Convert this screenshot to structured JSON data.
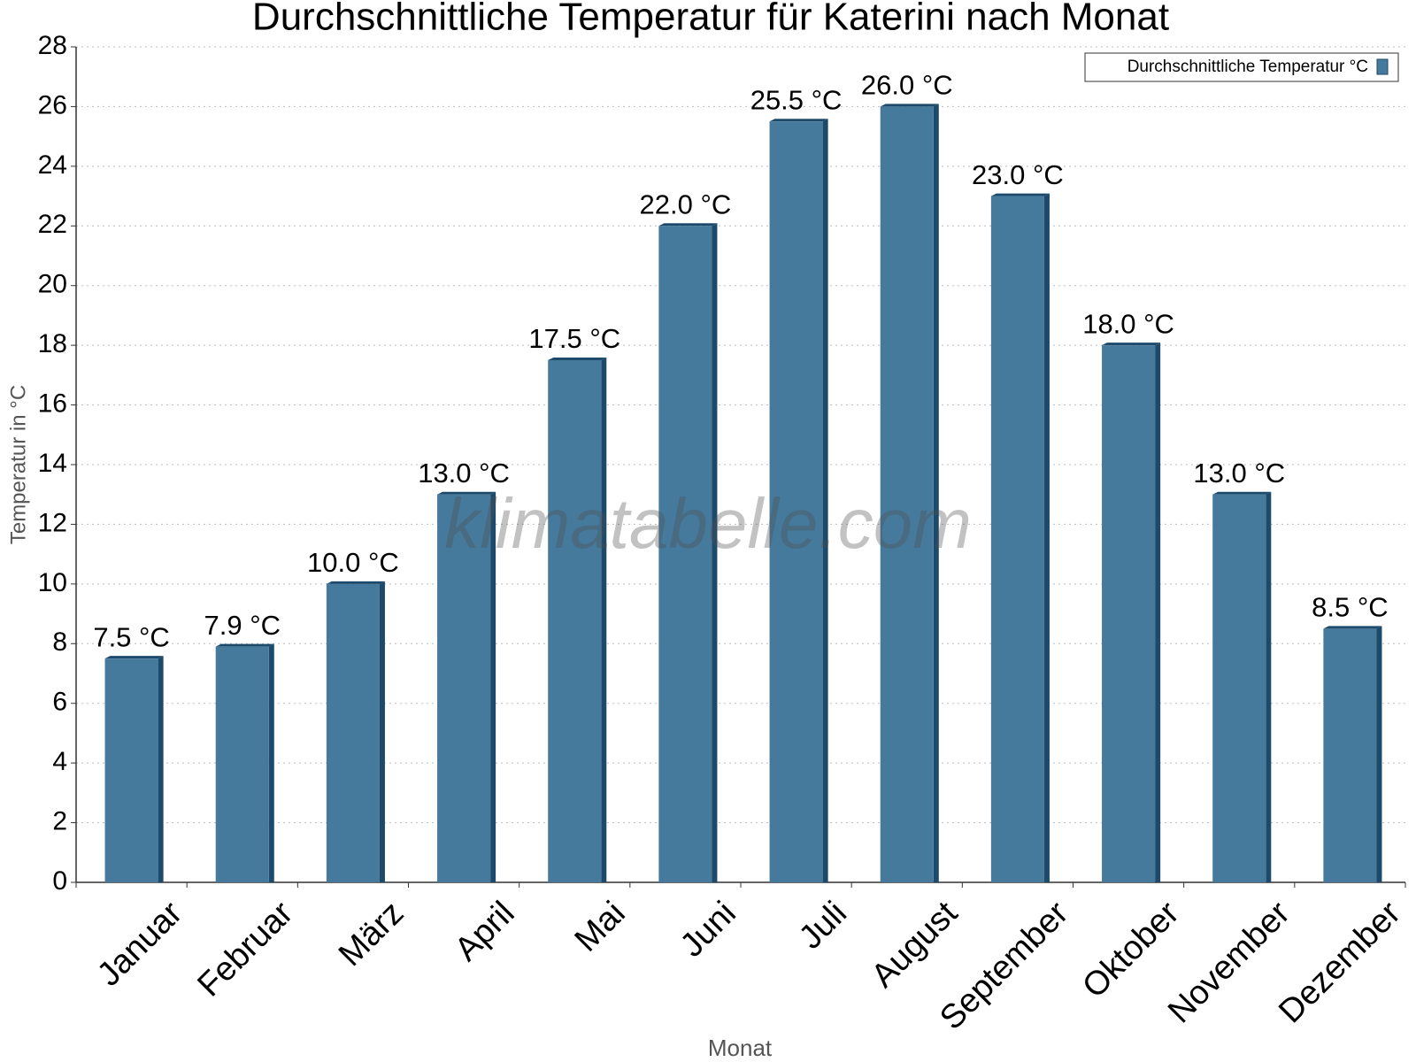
{
  "chart_data": {
    "type": "bar",
    "title": "Durchschnittliche Temperatur für Katerini nach Monat",
    "x_label": "Monat",
    "y_label": "Temperatur in °C",
    "watermark": "klimatabelle.com",
    "categories": [
      "Januar",
      "Februar",
      "März",
      "April",
      "Mai",
      "Juni",
      "Juli",
      "August",
      "September",
      "Oktober",
      "November",
      "Dezember"
    ],
    "series": [
      {
        "name": "Durchschnittliche Temperatur °C",
        "color": "#467a9c",
        "values": [
          7.5,
          7.9,
          10.0,
          13.0,
          17.5,
          22.0,
          25.5,
          26.0,
          23.0,
          18.0,
          13.0,
          8.5
        ],
        "value_labels": [
          "7.5 °C",
          "7.9 °C",
          "10.0 °C",
          "13.0 °C",
          "17.5 °C",
          "22.0 °C",
          "25.5 °C",
          "26.0 °C",
          "23.0 °C",
          "18.0 °C",
          "13.0 °C",
          "8.5 °C"
        ]
      }
    ],
    "ylim": [
      0,
      28
    ],
    "yticks": [
      0,
      2,
      4,
      6,
      8,
      10,
      12,
      14,
      16,
      18,
      20,
      22,
      24,
      26,
      28
    ],
    "grid": true,
    "legend": "top-right"
  }
}
